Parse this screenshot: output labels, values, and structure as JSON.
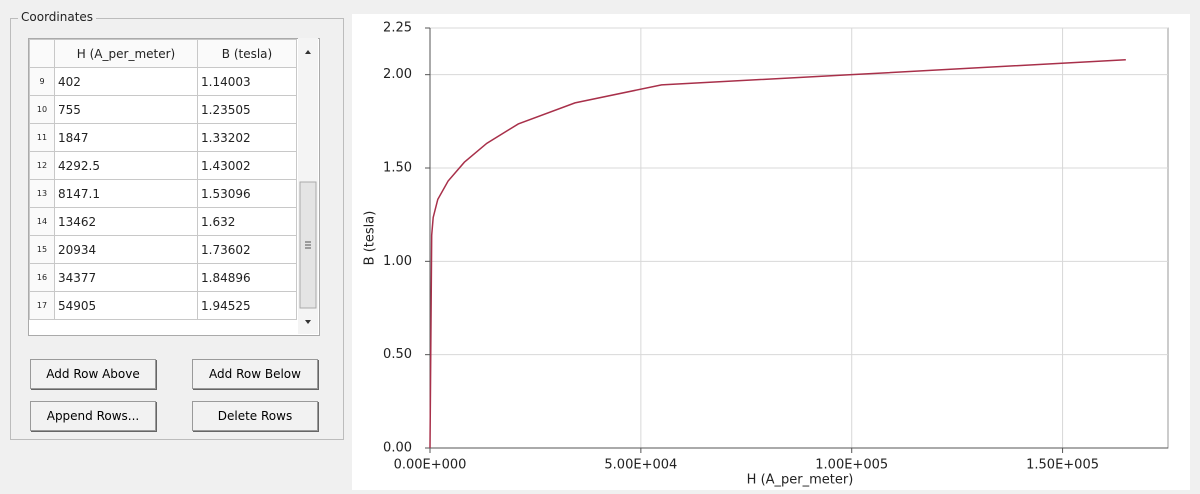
{
  "group_title": "Coordinates",
  "table": {
    "headers": [
      "H (A_per_meter)",
      "B (tesla)"
    ],
    "rows": [
      [
        "9",
        "402",
        "1.14003"
      ],
      [
        "10",
        "755",
        "1.23505"
      ],
      [
        "11",
        "1847",
        "1.33202"
      ],
      [
        "12",
        "4292.5",
        "1.43002"
      ],
      [
        "13",
        "8147.1",
        "1.53096"
      ],
      [
        "14",
        "13462",
        "1.632"
      ],
      [
        "15",
        "20934",
        "1.73602"
      ],
      [
        "16",
        "34377",
        "1.84896"
      ],
      [
        "17",
        "54905",
        "1.94525"
      ]
    ]
  },
  "buttons": [
    "Add Row Above",
    "Add Row Below",
    "Append Rows...",
    "Delete Rows"
  ],
  "chart_data": {
    "type": "line",
    "x_label": "H (A_per_meter)",
    "y_label": "B (tesla)",
    "x": [
      0,
      402,
      755,
      1847,
      4292.5,
      8147.1,
      13462,
      20934,
      34377,
      54905,
      100000,
      165000
    ],
    "values": [
      0,
      1.14003,
      1.23505,
      1.33202,
      1.43002,
      1.53096,
      1.632,
      1.73602,
      1.84896,
      1.94525,
      2.0,
      2.08
    ],
    "color": "#a8304a",
    "xlim": [
      0,
      175000
    ],
    "ylim": [
      0,
      2.25
    ],
    "xticks": [
      {
        "value": 0,
        "label": "0.00E+000"
      },
      {
        "value": 50000,
        "label": "5.00E+004"
      },
      {
        "value": 100000,
        "label": "1.00E+005"
      },
      {
        "value": 150000,
        "label": "1.50E+005"
      }
    ],
    "yticks": [
      {
        "value": 0,
        "label": "0.00"
      },
      {
        "value": 0.5,
        "label": "0.50"
      },
      {
        "value": 1,
        "label": "1.00"
      },
      {
        "value": 1.5,
        "label": "1.50"
      },
      {
        "value": 2,
        "label": "2.00"
      },
      {
        "value": 2.25,
        "label": "2.25"
      }
    ],
    "grid": true
  }
}
